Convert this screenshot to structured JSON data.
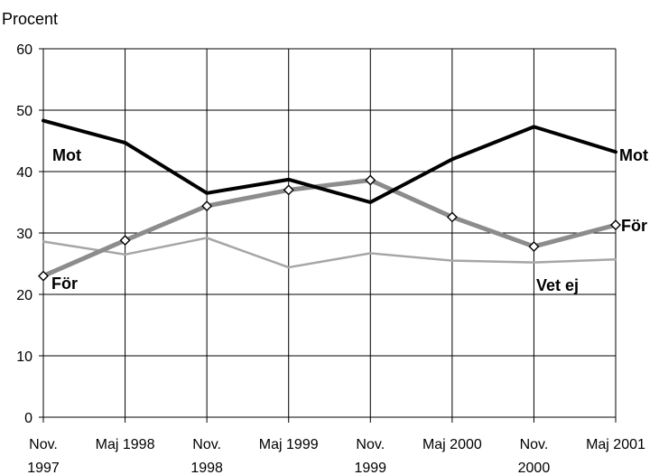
{
  "chart_data": {
    "type": "line",
    "ylabel": "Procent",
    "ylim": [
      0,
      60
    ],
    "yticks": [
      0,
      10,
      20,
      30,
      40,
      50,
      60
    ],
    "grid": true,
    "categories": [
      [
        "Nov.",
        "1997"
      ],
      [
        "Maj 1998"
      ],
      [
        "Nov.",
        "1998"
      ],
      [
        "Maj 1999"
      ],
      [
        "Nov.",
        "1999"
      ],
      [
        "Maj 2000"
      ],
      [
        "Nov.",
        "2000"
      ],
      [
        "Maj 2001"
      ]
    ],
    "series": [
      {
        "name": "Mot",
        "values": [
          48.3,
          44.7,
          36.5,
          38.7,
          35.0,
          42.0,
          47.3,
          43.2
        ],
        "color": "#000000",
        "markers": false
      },
      {
        "name": "För",
        "values": [
          23.0,
          28.8,
          34.4,
          37.0,
          38.6,
          32.6,
          27.8,
          31.3
        ],
        "color": "#8c8c8c",
        "markers": true
      },
      {
        "name": "Vet ej",
        "values": [
          28.6,
          26.5,
          29.2,
          24.4,
          26.7,
          25.5,
          25.2,
          25.7
        ],
        "color": "#a6a6a6",
        "markers": false
      }
    ],
    "series_label_texts": {
      "mot_left": "Mot",
      "mot_right": "Mot",
      "for_left": "För",
      "for_right": "För",
      "vetej": "Vet ej"
    }
  }
}
